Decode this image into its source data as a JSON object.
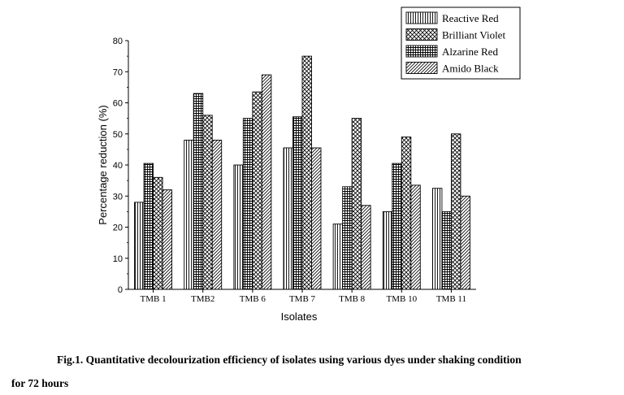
{
  "chart_data": {
    "type": "bar",
    "title": "",
    "xlabel": "Isolates",
    "ylabel": "Percentage reduction (%)",
    "ylim": [
      0,
      80
    ],
    "yticks": [
      0,
      10,
      20,
      30,
      40,
      50,
      60,
      70,
      80
    ],
    "categories": [
      "TMB 1",
      "TMB2",
      "TMB 6",
      "TMB 7",
      "TMB 8",
      "TMB 10",
      "TMB 11"
    ],
    "series": [
      {
        "name": "Reactive Red",
        "pattern": "vertical-lines",
        "values": [
          28,
          48,
          40,
          45.5,
          21,
          25,
          32.5
        ]
      },
      {
        "name": "Brilliant Violet",
        "pattern": "crosshatch",
        "values": [
          36,
          56,
          63.5,
          75,
          55,
          49,
          50
        ]
      },
      {
        "name": "Alzarine Red",
        "pattern": "grid",
        "values": [
          40.5,
          63,
          55,
          55.5,
          33,
          40.5,
          25
        ]
      },
      {
        "name": "Amido Black",
        "pattern": "diagonal-lines",
        "values": [
          32,
          48,
          69,
          45.5,
          27,
          33.5,
          30
        ]
      }
    ],
    "bar_order": [
      0,
      2,
      1,
      3
    ],
    "legend_position": "top-right",
    "grid": false
  },
  "caption": {
    "line1": "Fig.1. Quantitative decolourization efficiency of isolates using various dyes under shaking condition",
    "line2": "for 72 hours"
  }
}
